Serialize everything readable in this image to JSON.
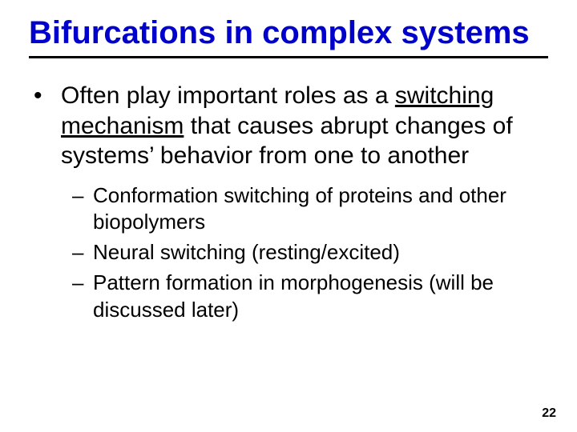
{
  "colors": {
    "background": "#ffffff",
    "title_color": "#0000cc",
    "text_color": "#000000",
    "rule_color": "#000000"
  },
  "typography": {
    "font_family": "Trebuchet MS",
    "title_fontsize": 40,
    "title_weight": "bold",
    "body_fontsize": 30,
    "sub_fontsize": 26,
    "pagenum_fontsize": 16
  },
  "title": "Bifurcations in complex systems",
  "main_bullet": {
    "marker": "•",
    "pre_text": "Often play important roles as a ",
    "underlined": "switching mechanism",
    "post_text": " that causes abrupt changes of systems’ behavior from one to another"
  },
  "sub_bullets": [
    {
      "marker": "–",
      "text": "Conformation switching of proteins and other biopolymers"
    },
    {
      "marker": "–",
      "text": "Neural switching (resting/excited)"
    },
    {
      "marker": "–",
      "text": "Pattern formation in morphogenesis (will be discussed later)"
    }
  ],
  "page_number": "22"
}
